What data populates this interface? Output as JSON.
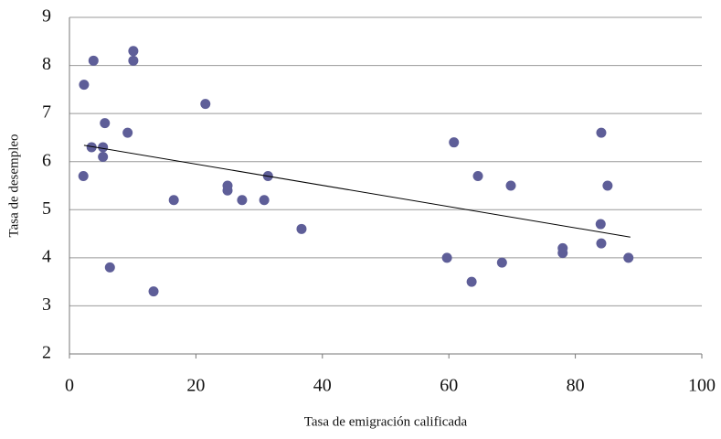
{
  "chart_data": {
    "type": "scatter",
    "xlabel": "Tasa de emigración calificada",
    "ylabel": "Tasa de desempleo",
    "color": "#5e5e98",
    "x": [
      2.3,
      3.8,
      10.1,
      10.1,
      21.5,
      5.6,
      9.2,
      3.5,
      5.3,
      5.3,
      2.2,
      6.4,
      13.3,
      16.5,
      25,
      25,
      27.3,
      30.8,
      31.4,
      36.7,
      60.8,
      59.7,
      63.6,
      64.6,
      68.4,
      69.8,
      78,
      78,
      84.1,
      84,
      84.1,
      85.1,
      88.4
    ],
    "values": [
      7.6,
      8.1,
      8.3,
      8.1,
      7.2,
      6.8,
      6.6,
      6.3,
      6.3,
      6.1,
      5.7,
      3.8,
      3.3,
      5.2,
      5.5,
      5.4,
      5.2,
      5.2,
      5.7,
      4.6,
      6.4,
      4.0,
      3.5,
      5.7,
      3.9,
      5.5,
      4.2,
      4.1,
      6.6,
      4.7,
      4.3,
      5.5,
      4.0
    ],
    "trendline": {
      "x": [
        2.3,
        88.7
      ],
      "y": [
        6.34,
        4.43
      ]
    },
    "xlim": [
      0,
      100
    ],
    "xticks": [
      0,
      20,
      40,
      60,
      80,
      100
    ],
    "ylim": [
      2,
      9
    ],
    "yticks": [
      2,
      3,
      4,
      5,
      6,
      7,
      8,
      9
    ],
    "grid": true
  }
}
